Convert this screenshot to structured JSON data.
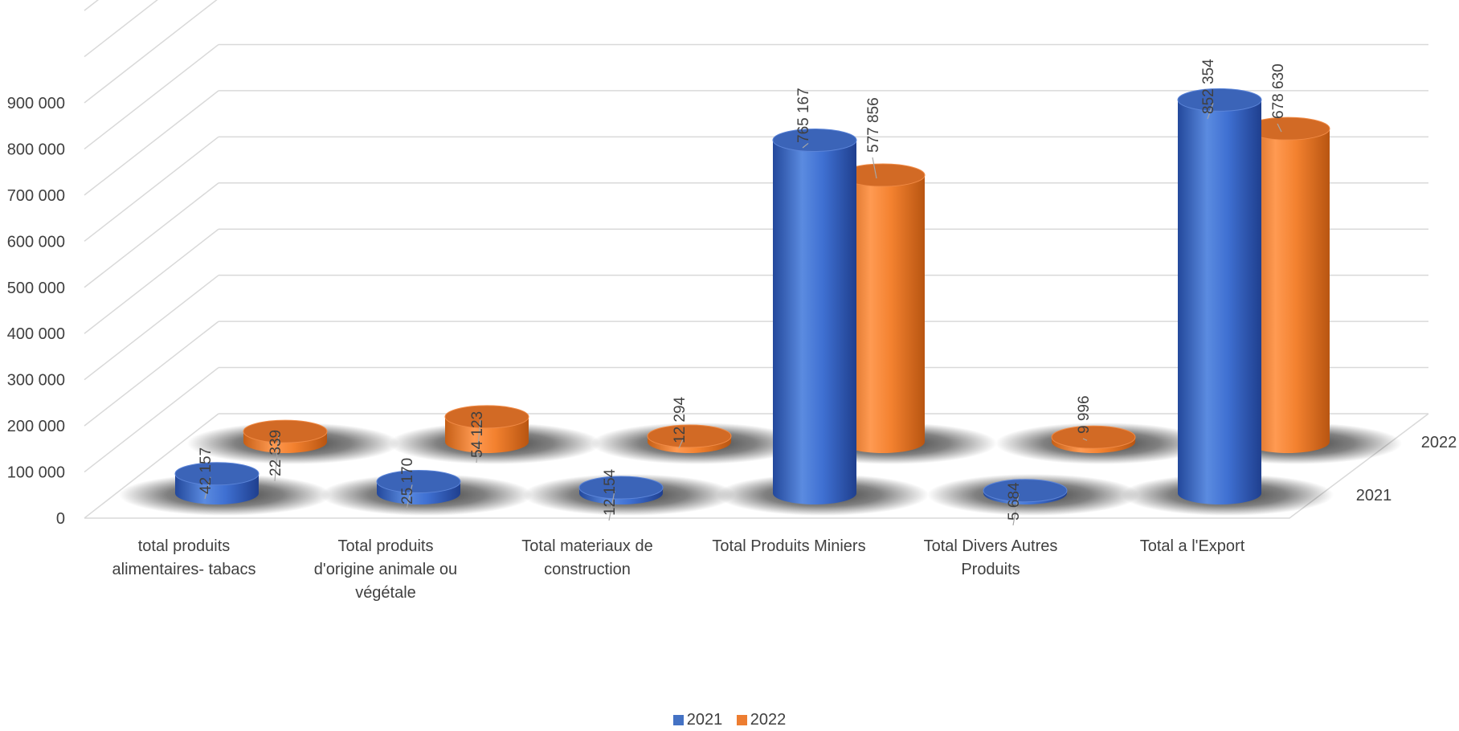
{
  "chart_data": {
    "type": "bar",
    "subtype": "3d-cylinder",
    "title": "",
    "xlabel": "",
    "ylabel": "",
    "ylim": [
      0,
      900000
    ],
    "yticks": [
      0,
      100000,
      200000,
      300000,
      400000,
      500000,
      600000,
      700000,
      800000,
      900000
    ],
    "ytick_labels": [
      "0",
      "100 000",
      "200 000",
      "300 000",
      "400 000",
      "500 000",
      "600 000",
      "700 000",
      "800 000",
      "900 000"
    ],
    "grid": true,
    "legend_position": "bottom",
    "categories": [
      "total produits alimentaires- tabacs",
      "Total produits d'origine animale ou végétale",
      "Total materiaux de construction",
      "Total Produits Miniers",
      "Total Divers Autres Produits",
      "Total a l'Export"
    ],
    "series": [
      {
        "name": "2021",
        "color": "#4472C4",
        "values": [
          42157,
          25170,
          12154,
          765167,
          5684,
          852354
        ],
        "labels": [
          "42 157",
          "25 170",
          "12 154",
          "765 167",
          "5 684",
          "852 354"
        ]
      },
      {
        "name": "2022",
        "color": "#ED7D31",
        "values": [
          22339,
          54123,
          12294,
          577856,
          9996,
          678630
        ],
        "labels": [
          "22 339",
          "54 123",
          "12 294",
          "577 856",
          "9 996",
          "678 630"
        ]
      }
    ],
    "depth_labels": [
      "2022",
      "2021"
    ]
  }
}
